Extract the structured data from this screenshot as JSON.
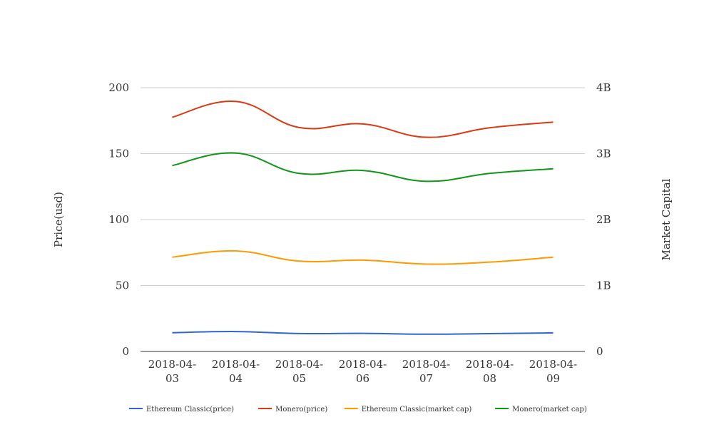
{
  "chart_data": {
    "type": "line",
    "x": [
      "2018-04-03",
      "2018-04-04",
      "2018-04-05",
      "2018-04-06",
      "2018-04-07",
      "2018-04-08",
      "2018-04-09"
    ],
    "x_tick_labels": [
      [
        "2018-04-",
        "03"
      ],
      [
        "2018-04-",
        "04"
      ],
      [
        "2018-04-",
        "05"
      ],
      [
        "2018-04-",
        "06"
      ],
      [
        "2018-04-",
        "07"
      ],
      [
        "2018-04-",
        "08"
      ],
      [
        "2018-04-",
        "09"
      ]
    ],
    "ylabel_left": "Price(usd)",
    "ylabel_right": "Market Capital",
    "ylim_left": [
      0,
      200
    ],
    "ylim_right": [
      0,
      4000000000
    ],
    "yticks_left": [
      0,
      50,
      100,
      150,
      200
    ],
    "yticks_left_labels": [
      "0",
      "50",
      "100",
      "150",
      "200"
    ],
    "yticks_right": [
      0,
      1000000000,
      2000000000,
      3000000000,
      4000000000
    ],
    "yticks_right_labels": [
      "0",
      "1B",
      "2B",
      "3B",
      "4B"
    ],
    "grid": true,
    "legend_position": "bottom",
    "series": [
      {
        "name": "Ethereum Classic(price)",
        "axis": "left",
        "color": "#3366cc",
        "values": [
          14.2,
          15.1,
          13.6,
          13.7,
          13.1,
          13.5,
          14.1
        ]
      },
      {
        "name": "Monero(price)",
        "axis": "left",
        "color": "#dc3912",
        "values": [
          177.6,
          189.6,
          169.8,
          172.5,
          162.4,
          169.6,
          173.9
        ]
      },
      {
        "name": "Ethereum Classic(market cap)",
        "axis": "right",
        "color": "#ff9900",
        "values": [
          1430000000,
          1525000000,
          1370000000,
          1385000000,
          1325000000,
          1355000000,
          1430000000
        ]
      },
      {
        "name": "Monero(market cap)",
        "axis": "right",
        "color": "#109618",
        "values": [
          2820000000,
          3010000000,
          2700000000,
          2745000000,
          2580000000,
          2700000000,
          2770000000
        ]
      }
    ]
  }
}
